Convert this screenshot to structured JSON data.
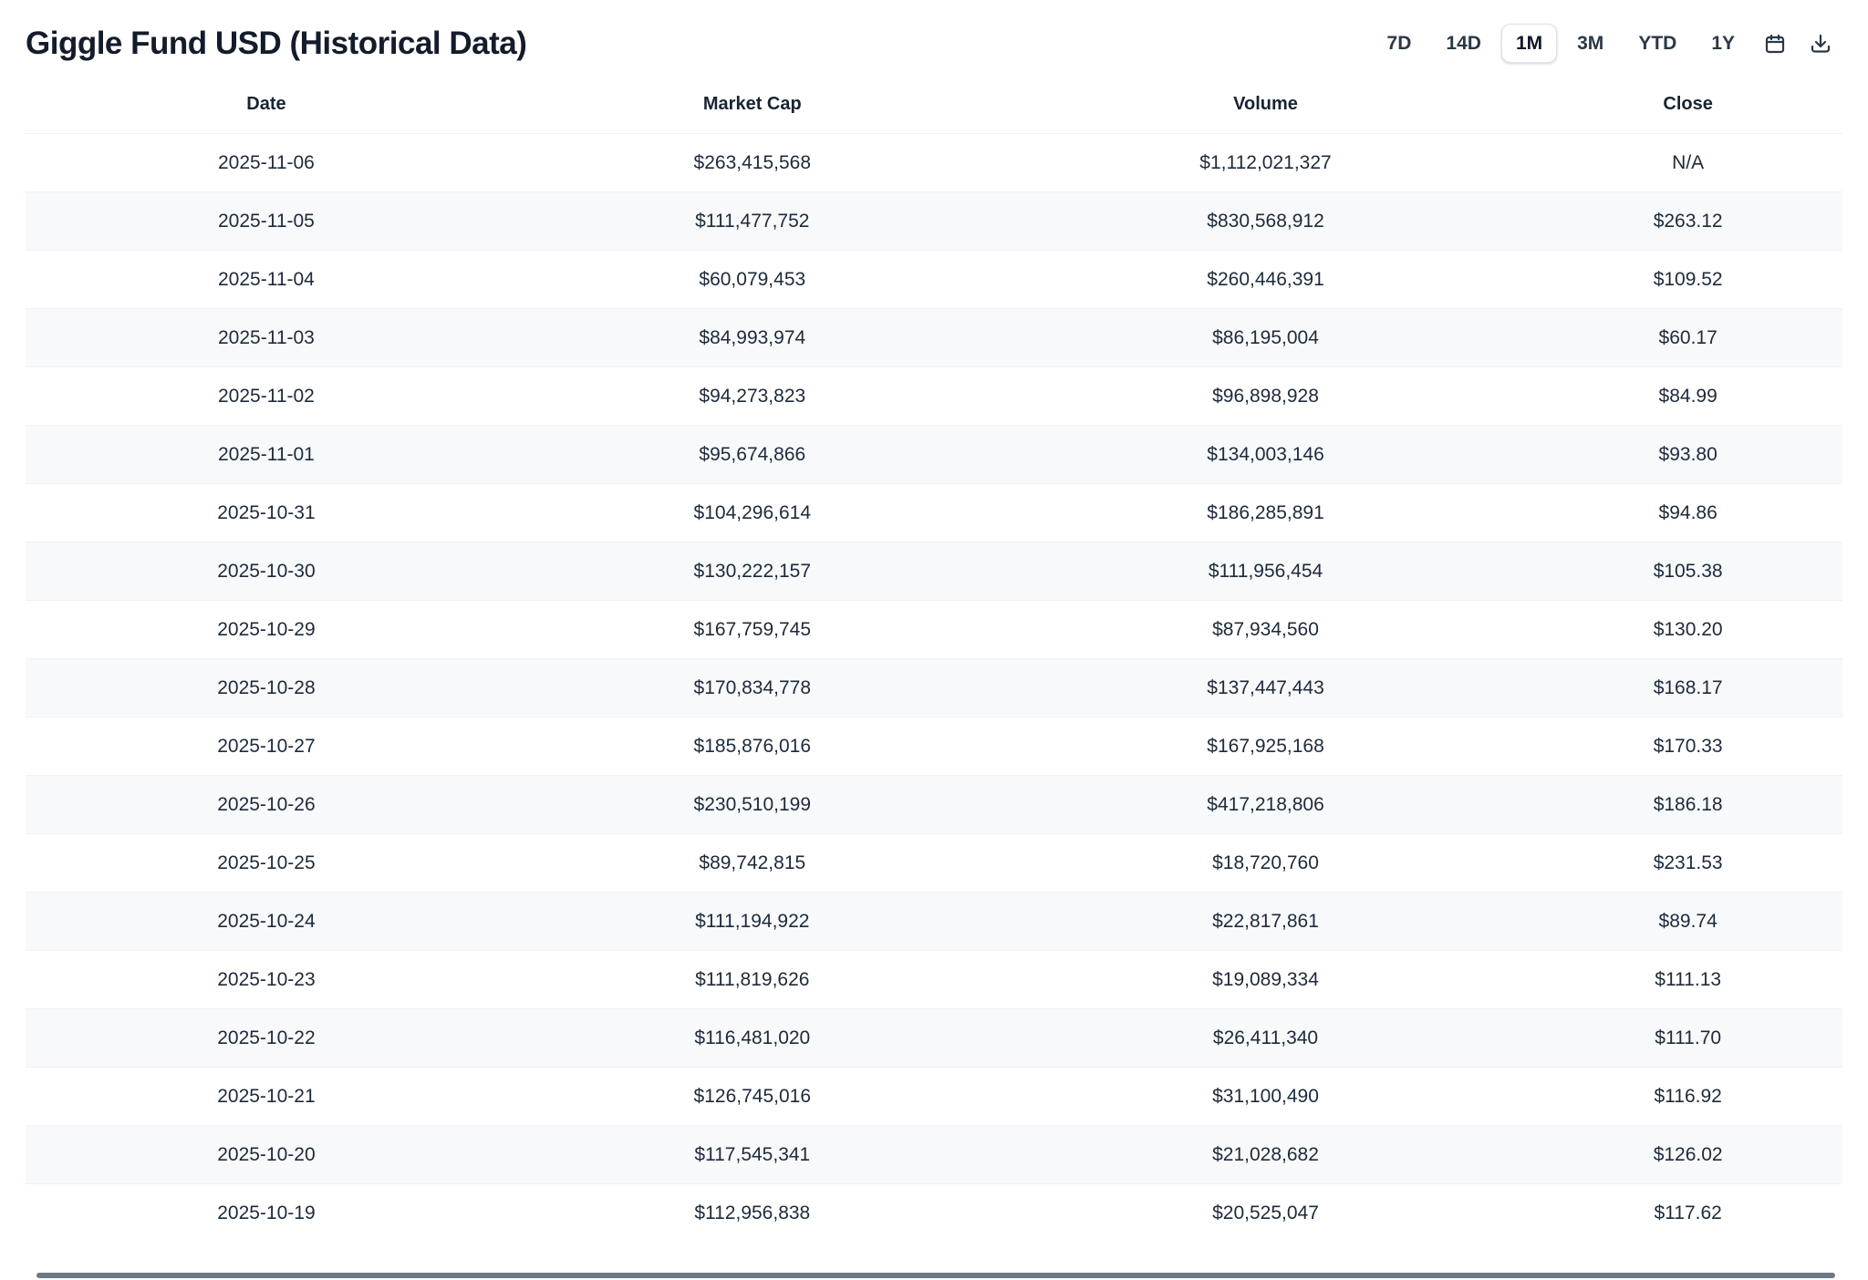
{
  "header": {
    "title": "Giggle Fund USD (Historical Data)"
  },
  "toolbar": {
    "ranges": [
      {
        "label": "7D",
        "active": false
      },
      {
        "label": "14D",
        "active": false
      },
      {
        "label": "1M",
        "active": true
      },
      {
        "label": "3M",
        "active": false
      },
      {
        "label": "YTD",
        "active": false
      },
      {
        "label": "1Y",
        "active": false
      }
    ],
    "icons": [
      "calendar-icon",
      "download-icon"
    ]
  },
  "table": {
    "columns": [
      "Date",
      "Market Cap",
      "Volume",
      "Close"
    ],
    "rows": [
      [
        "2025-11-06",
        "$263,415,568",
        "$1,112,021,327",
        "N/A"
      ],
      [
        "2025-11-05",
        "$111,477,752",
        "$830,568,912",
        "$263.12"
      ],
      [
        "2025-11-04",
        "$60,079,453",
        "$260,446,391",
        "$109.52"
      ],
      [
        "2025-11-03",
        "$84,993,974",
        "$86,195,004",
        "$60.17"
      ],
      [
        "2025-11-02",
        "$94,273,823",
        "$96,898,928",
        "$84.99"
      ],
      [
        "2025-11-01",
        "$95,674,866",
        "$134,003,146",
        "$93.80"
      ],
      [
        "2025-10-31",
        "$104,296,614",
        "$186,285,891",
        "$94.86"
      ],
      [
        "2025-10-30",
        "$130,222,157",
        "$111,956,454",
        "$105.38"
      ],
      [
        "2025-10-29",
        "$167,759,745",
        "$87,934,560",
        "$130.20"
      ],
      [
        "2025-10-28",
        "$170,834,778",
        "$137,447,443",
        "$168.17"
      ],
      [
        "2025-10-27",
        "$185,876,016",
        "$167,925,168",
        "$170.33"
      ],
      [
        "2025-10-26",
        "$230,510,199",
        "$417,218,806",
        "$186.18"
      ],
      [
        "2025-10-25",
        "$89,742,815",
        "$18,720,760",
        "$231.53"
      ],
      [
        "2025-10-24",
        "$111,194,922",
        "$22,817,861",
        "$89.74"
      ],
      [
        "2025-10-23",
        "$111,819,626",
        "$19,089,334",
        "$111.13"
      ],
      [
        "2025-10-22",
        "$116,481,020",
        "$26,411,340",
        "$111.70"
      ],
      [
        "2025-10-21",
        "$126,745,016",
        "$31,100,490",
        "$116.92"
      ],
      [
        "2025-10-20",
        "$117,545,341",
        "$21,028,682",
        "$126.02"
      ],
      [
        "2025-10-19",
        "$112,956,838",
        "$20,525,047",
        "$117.62"
      ]
    ]
  },
  "colors": {
    "title_text": "#141c2b",
    "body_text": "#1e2a3a",
    "stripe": "#f7f9fb",
    "active_button_border": "#dde3ec",
    "scrollbar": "#6e7986"
  }
}
